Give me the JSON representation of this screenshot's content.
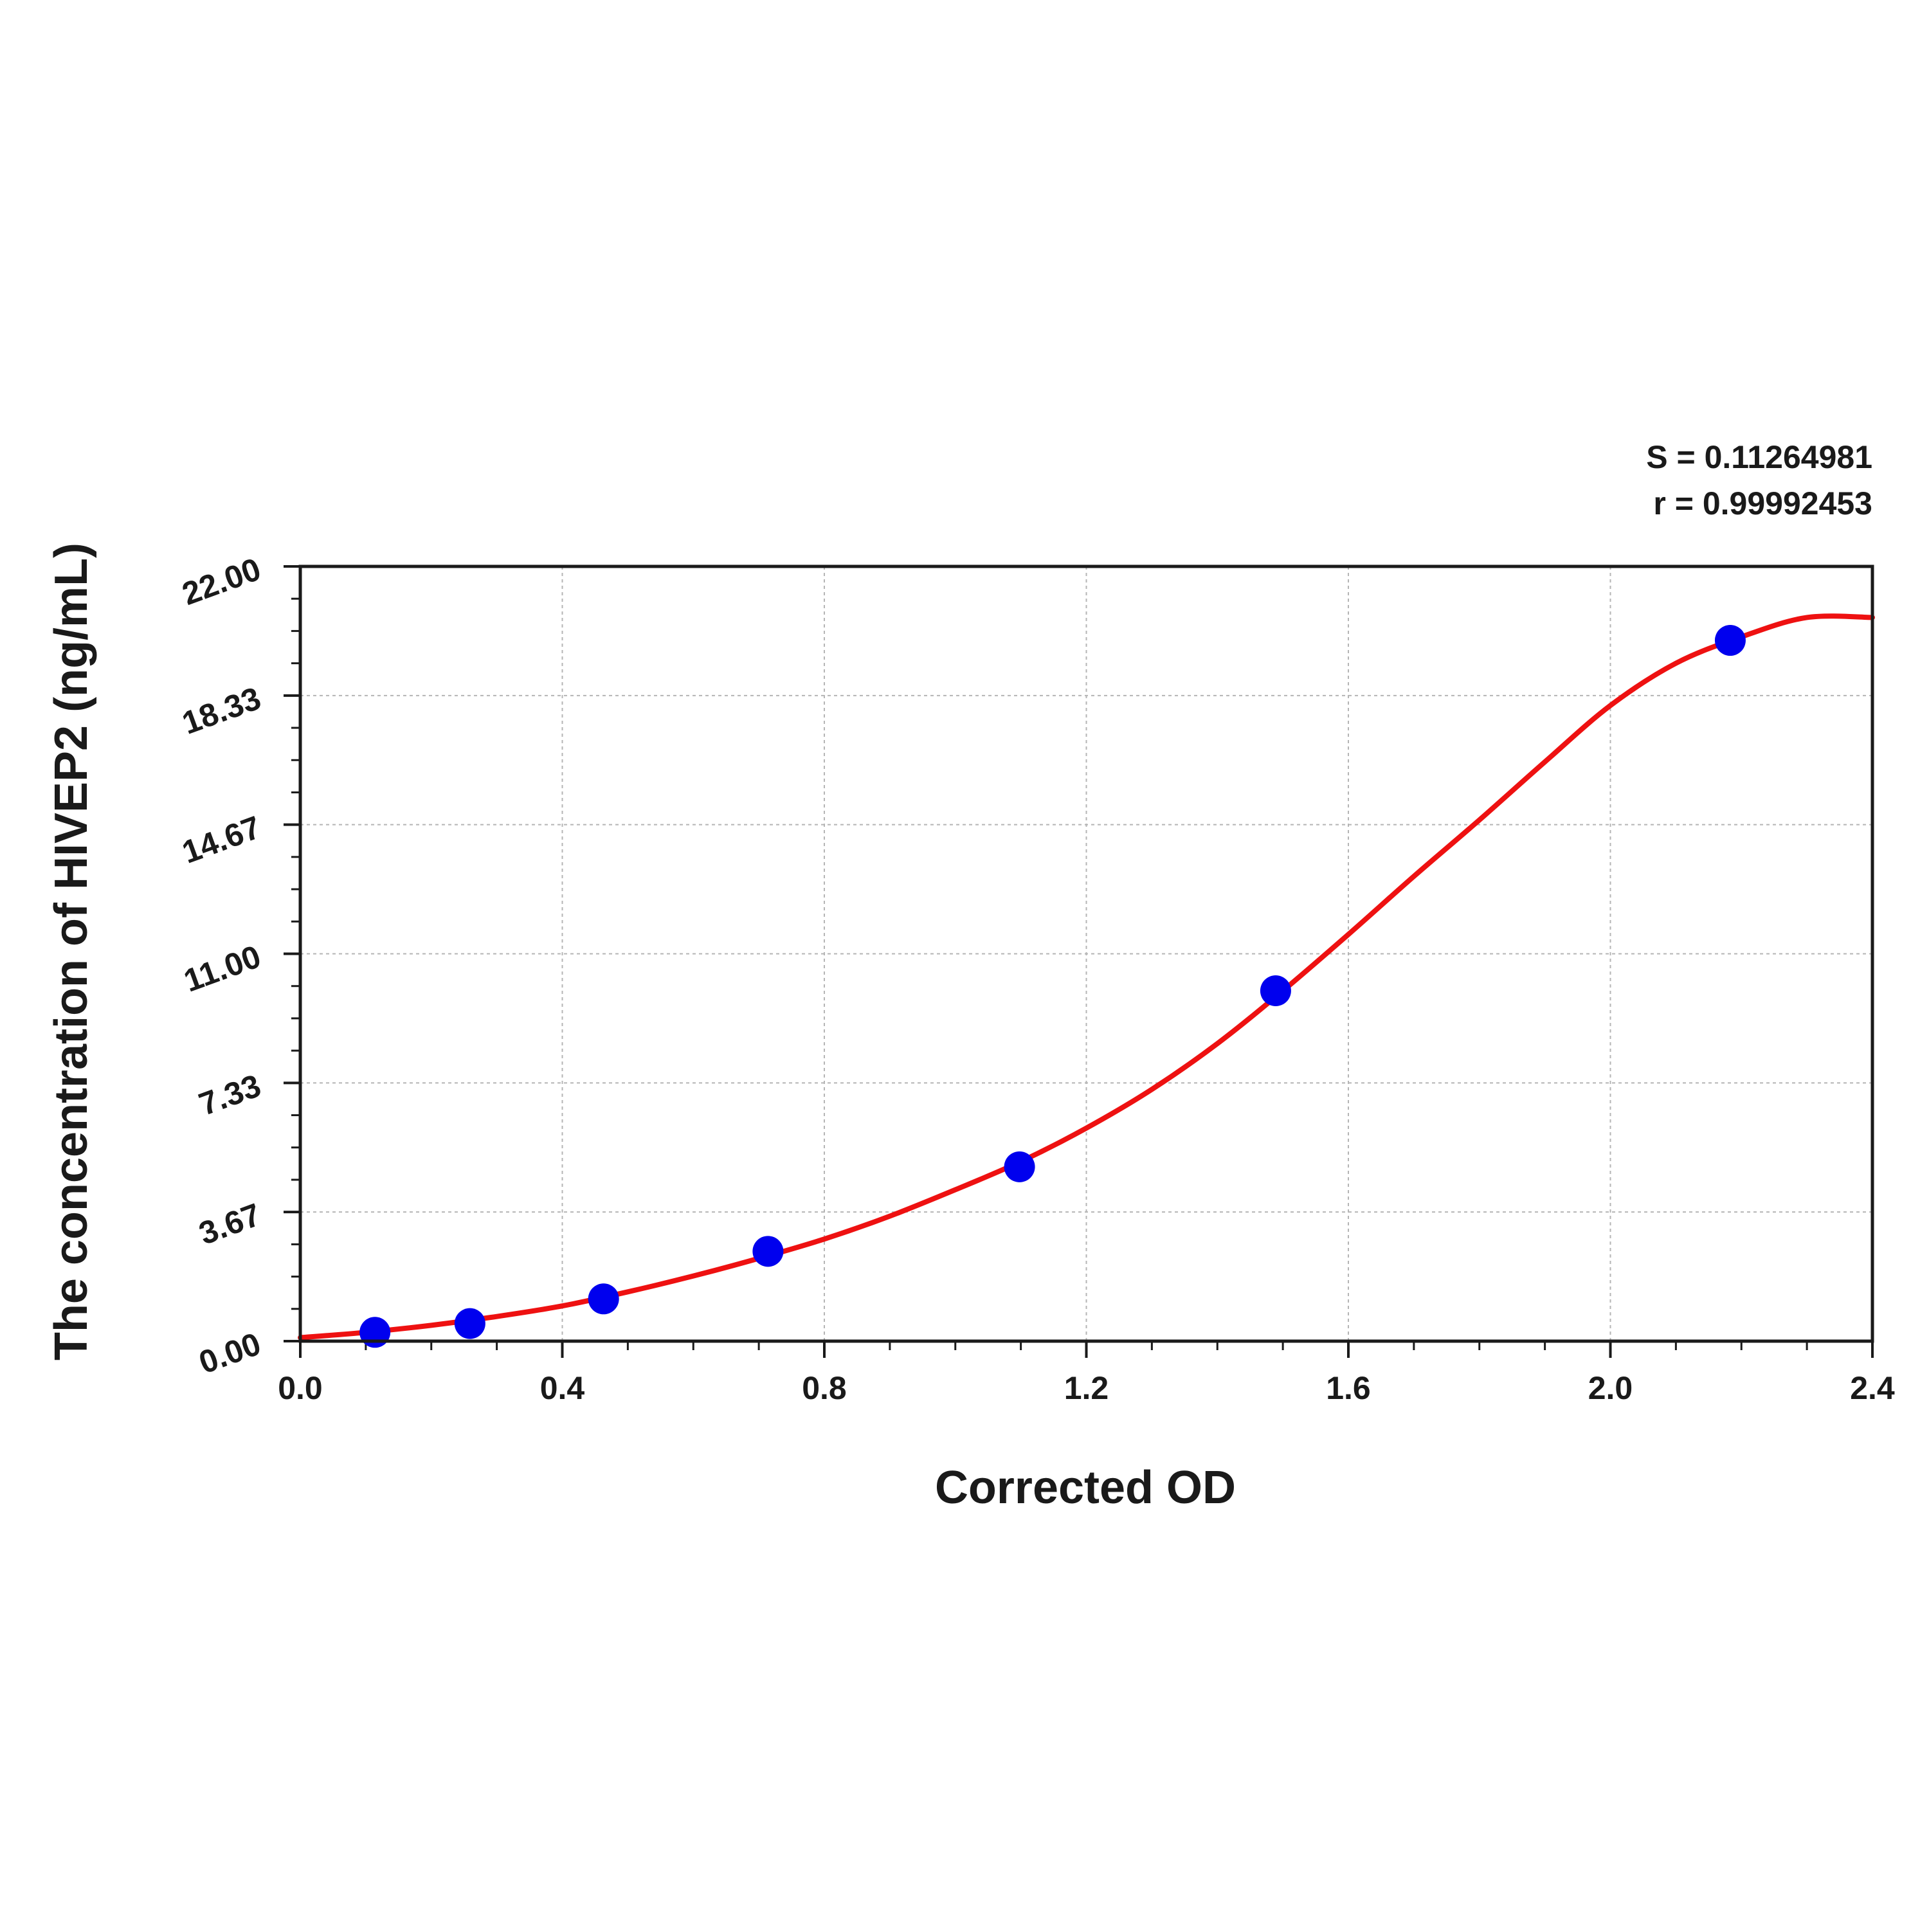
{
  "chart_data": {
    "type": "scatter",
    "title": "",
    "xlabel": "Corrected OD",
    "ylabel": "The concentration of HIVEP2 (ng/mL)",
    "xlim": [
      0.0,
      2.4
    ],
    "ylim": [
      0.0,
      22.0
    ],
    "x_ticks": [
      "0.0",
      "0.4",
      "0.8",
      "1.2",
      "1.6",
      "2.0",
      "2.4"
    ],
    "y_ticks": [
      "0.00",
      "3.67",
      "7.33",
      "11.00",
      "14.67",
      "18.33",
      "22.00"
    ],
    "grid": true,
    "annotations": {
      "s_value": "S = 0.11264981",
      "r_value": "r = 0.99992453"
    },
    "series": [
      {
        "type": "scatter",
        "color": "#0000ee",
        "x": [
          0.114,
          0.259,
          0.463,
          0.714,
          1.098,
          1.489,
          2.183
        ],
        "y": [
          0.25,
          0.5,
          1.2,
          2.55,
          4.95,
          9.95,
          19.9
        ]
      },
      {
        "type": "fitted-curve",
        "color": "#ee1111",
        "x": [
          0.0,
          0.1,
          0.2,
          0.3,
          0.4,
          0.5,
          0.6,
          0.7,
          0.8,
          0.9,
          1.0,
          1.1,
          1.2,
          1.3,
          1.4,
          1.5,
          1.6,
          1.7,
          1.8,
          1.9,
          2.0,
          2.1,
          2.2,
          2.3,
          2.4
        ],
        "y": [
          0.1,
          0.25,
          0.45,
          0.7,
          1.0,
          1.4,
          1.85,
          2.35,
          2.9,
          3.55,
          4.3,
          5.1,
          6.05,
          7.15,
          8.45,
          9.95,
          11.55,
          13.2,
          14.8,
          16.45,
          18.05,
          19.25,
          20.0,
          20.55,
          20.55
        ]
      }
    ]
  }
}
